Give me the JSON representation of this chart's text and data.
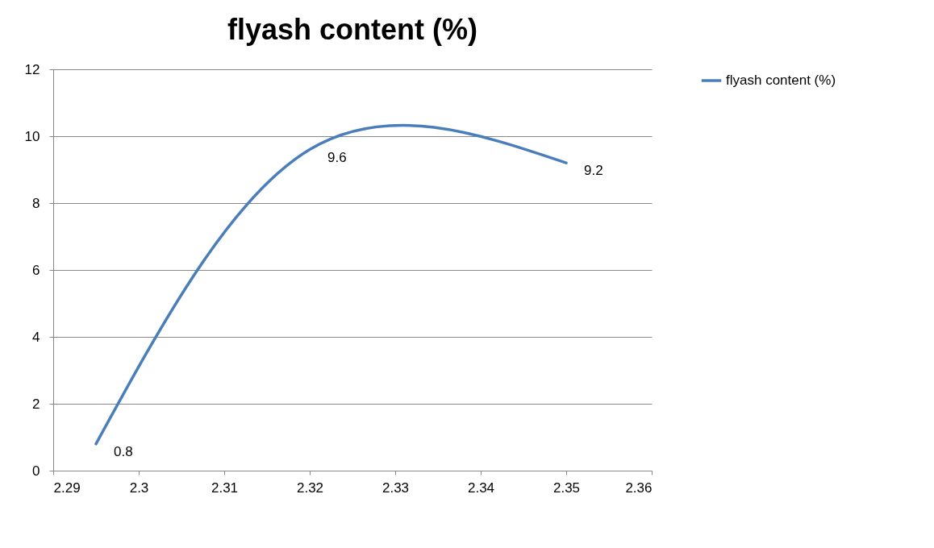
{
  "chart_data": {
    "type": "line",
    "title": "flyash content (%)",
    "x": [
      2.295,
      2.32,
      2.35
    ],
    "series": [
      {
        "name": "flyash content (%)",
        "color": "#4a7ebb",
        "values": [
          0.8,
          9.6,
          9.2
        ]
      }
    ],
    "xlim": [
      2.29,
      2.36
    ],
    "xticks": [
      2.29,
      2.3,
      2.31,
      2.32,
      2.33,
      2.34,
      2.35,
      2.36
    ],
    "ylim": [
      0,
      12
    ],
    "yticks": [
      0,
      2,
      4,
      6,
      8,
      10,
      12
    ],
    "grid": "y",
    "legend": "right",
    "marker": "none",
    "line_style": "solid",
    "data_labels": true
  }
}
